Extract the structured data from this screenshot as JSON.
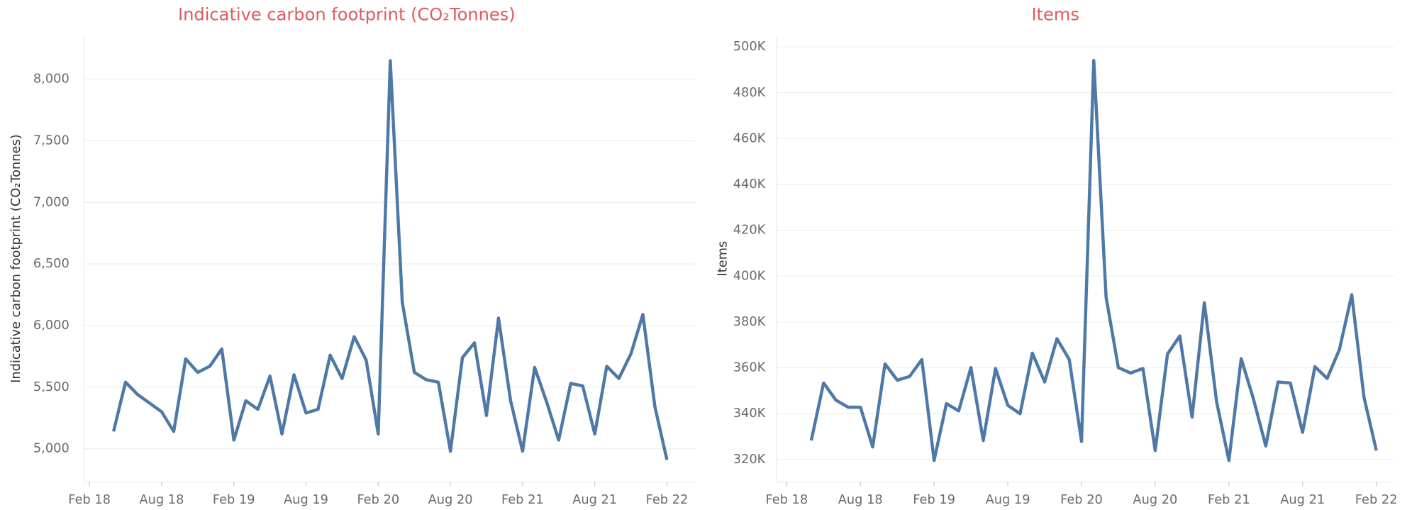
{
  "chart_data": [
    {
      "type": "line",
      "title": "Indicative carbon footprint (CO₂Tonnes)",
      "y_label": "Indicative carbon footprint (CO₂Tonnes)",
      "x": [
        "2018-04",
        "2018-05",
        "2018-06",
        "2018-07",
        "2018-08",
        "2018-09",
        "2018-10",
        "2018-11",
        "2018-12",
        "2019-01",
        "2019-02",
        "2019-03",
        "2019-04",
        "2019-05",
        "2019-06",
        "2019-07",
        "2019-08",
        "2019-09",
        "2019-10",
        "2019-11",
        "2019-12",
        "2020-01",
        "2020-02",
        "2020-03",
        "2020-04",
        "2020-05",
        "2020-06",
        "2020-07",
        "2020-08",
        "2020-09",
        "2020-10",
        "2020-11",
        "2020-12",
        "2021-01",
        "2021-02",
        "2021-03",
        "2021-04",
        "2021-05",
        "2021-06",
        "2021-07",
        "2021-08",
        "2021-09",
        "2021-10",
        "2021-11",
        "2021-12",
        "2022-01",
        "2022-02"
      ],
      "series": [
        {
          "name": "Indicative carbon footprint (CO₂Tonnes)",
          "color": "#4e79a7",
          "values": [
            5140,
            5540,
            5440,
            5370,
            5300,
            5140,
            5730,
            5620,
            5670,
            5810,
            5070,
            5390,
            5320,
            5590,
            5120,
            5600,
            5290,
            5320,
            5760,
            5570,
            5910,
            5720,
            5120,
            8150,
            6190,
            5620,
            5560,
            5540,
            4980,
            5740,
            5860,
            5270,
            6060,
            5390,
            4980,
            5660,
            5380,
            5070,
            5530,
            5510,
            5120,
            5670,
            5570,
            5770,
            6090,
            5340,
            4910
          ]
        }
      ],
      "xlim": [
        "2018-01",
        "2022-03"
      ],
      "xticks": [
        {
          "value": "2018-02",
          "label": "Feb 18"
        },
        {
          "value": "2018-08",
          "label": "Aug 18"
        },
        {
          "value": "2019-02",
          "label": "Feb 19"
        },
        {
          "value": "2019-08",
          "label": "Aug 19"
        },
        {
          "value": "2020-02",
          "label": "Feb 20"
        },
        {
          "value": "2020-08",
          "label": "Aug 20"
        },
        {
          "value": "2021-02",
          "label": "Feb 21"
        },
        {
          "value": "2021-08",
          "label": "Aug 21"
        },
        {
          "value": "2022-02",
          "label": "Feb 22"
        }
      ],
      "ylim": [
        4730,
        8350
      ],
      "yticks": [
        {
          "value": 5000,
          "label": "5,000"
        },
        {
          "value": 5500,
          "label": "5,500"
        },
        {
          "value": 6000,
          "label": "6,000"
        },
        {
          "value": 6500,
          "label": "6,500"
        },
        {
          "value": 7000,
          "label": "7,000"
        },
        {
          "value": 7500,
          "label": "7,500"
        },
        {
          "value": 8000,
          "label": "8,000"
        }
      ],
      "grid": true
    },
    {
      "type": "line",
      "title": "Items",
      "y_label": "Items",
      "x": [
        "2018-04",
        "2018-05",
        "2018-06",
        "2018-07",
        "2018-08",
        "2018-09",
        "2018-10",
        "2018-11",
        "2018-12",
        "2019-01",
        "2019-02",
        "2019-03",
        "2019-04",
        "2019-05",
        "2019-06",
        "2019-07",
        "2019-08",
        "2019-09",
        "2019-10",
        "2019-11",
        "2019-12",
        "2020-01",
        "2020-02",
        "2020-03",
        "2020-04",
        "2020-05",
        "2020-06",
        "2020-07",
        "2020-08",
        "2020-09",
        "2020-10",
        "2020-11",
        "2020-12",
        "2021-01",
        "2021-02",
        "2021-03",
        "2021-04",
        "2021-05",
        "2021-06",
        "2021-07",
        "2021-08",
        "2021-09",
        "2021-10",
        "2021-11",
        "2021-12",
        "2022-01",
        "2022-02"
      ],
      "series": [
        {
          "name": "Items",
          "color": "#4e79a7",
          "values": [
            328300,
            353400,
            345900,
            342800,
            342800,
            325500,
            361700,
            354600,
            356200,
            363600,
            319600,
            344400,
            341200,
            360100,
            328300,
            359700,
            343600,
            340000,
            366400,
            353800,
            372700,
            363600,
            327900,
            494100,
            390800,
            360100,
            357700,
            359700,
            323900,
            366000,
            373900,
            338500,
            388400,
            345200,
            319600,
            364000,
            346300,
            325900,
            353800,
            353400,
            331800,
            360500,
            355400,
            368000,
            391900,
            347100,
            323900
          ]
        }
      ],
      "xlim": [
        "2018-01",
        "2022-03"
      ],
      "xticks": [
        {
          "value": "2018-02",
          "label": "Feb 18"
        },
        {
          "value": "2018-08",
          "label": "Aug 18"
        },
        {
          "value": "2019-02",
          "label": "Feb 19"
        },
        {
          "value": "2019-08",
          "label": "Aug 19"
        },
        {
          "value": "2020-02",
          "label": "Feb 20"
        },
        {
          "value": "2020-08",
          "label": "Aug 20"
        },
        {
          "value": "2021-02",
          "label": "Feb 21"
        },
        {
          "value": "2021-08",
          "label": "Aug 21"
        },
        {
          "value": "2022-02",
          "label": "Feb 22"
        }
      ],
      "ylim": [
        310200,
        504700
      ],
      "yticks": [
        {
          "value": 320000,
          "label": "320K"
        },
        {
          "value": 340000,
          "label": "340K"
        },
        {
          "value": 360000,
          "label": "360K"
        },
        {
          "value": 380000,
          "label": "380K"
        },
        {
          "value": 400000,
          "label": "400K"
        },
        {
          "value": 420000,
          "label": "420K"
        },
        {
          "value": 440000,
          "label": "440K"
        },
        {
          "value": 460000,
          "label": "460K"
        },
        {
          "value": 480000,
          "label": "480K"
        },
        {
          "value": 500000,
          "label": "500K"
        }
      ],
      "grid": true
    }
  ]
}
